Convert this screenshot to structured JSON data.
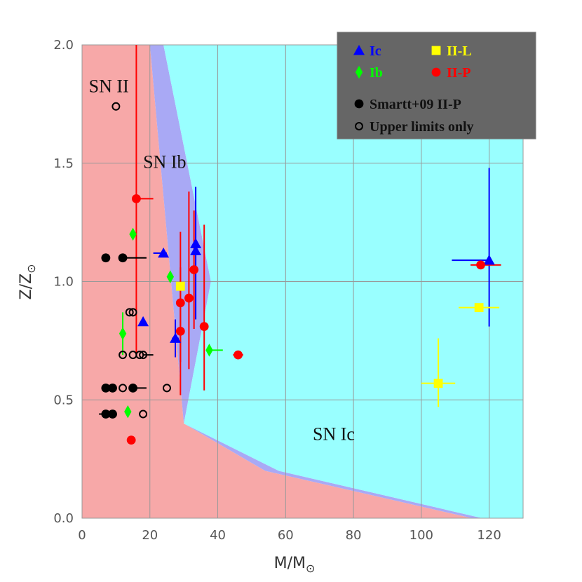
{
  "chart_data": {
    "type": "scatter",
    "xlabel": "M/M",
    "xlabel_symbol": "⊙",
    "ylabel": "Z/Z",
    "ylabel_symbol": "⊙",
    "xlim": [
      0,
      130
    ],
    "ylim": [
      0.0,
      2.0
    ],
    "x_ticks": [
      "0",
      "20",
      "40",
      "60",
      "80",
      "100",
      "120"
    ],
    "y_ticks": [
      "0.0",
      "0.5",
      "1.0",
      "1.5",
      "2.0"
    ],
    "grid": true,
    "legend_position": "top-right",
    "regions": [
      {
        "name": "SN II",
        "color": "#f7a8a8",
        "boundary": [
          [
            0,
            0
          ],
          [
            0,
            2
          ],
          [
            20,
            2
          ],
          [
            30,
            0.4
          ],
          [
            54,
            0.2
          ],
          [
            115,
            0
          ],
          [
            0,
            0
          ]
        ]
      },
      {
        "name": "SN Ib",
        "color": "#a9a9f5",
        "boundary": [
          [
            20,
            2
          ],
          [
            24,
            2
          ],
          [
            38,
            1.0
          ],
          [
            30,
            0.4
          ],
          [
            58,
            0.2
          ],
          [
            118,
            0
          ],
          [
            115,
            0
          ],
          [
            54,
            0.2
          ],
          [
            30,
            0.4
          ]
        ]
      },
      {
        "name": "SN Ic",
        "color": "#99ffff",
        "boundary": [
          [
            24,
            2
          ],
          [
            130,
            2
          ],
          [
            130,
            0
          ],
          [
            118,
            0
          ],
          [
            58,
            0.2
          ],
          [
            30,
            0.4
          ],
          [
            38,
            1.0
          ]
        ]
      }
    ],
    "region_labels": [
      {
        "text": "SN II",
        "x": 2,
        "y": 1.8
      },
      {
        "text": "SN Ib",
        "x": 18,
        "y": 1.48
      },
      {
        "text": "SN Ic",
        "x": 68,
        "y": 0.33
      }
    ],
    "legend": [
      {
        "label": "Ic",
        "marker": "triangle",
        "color": "#0000ff"
      },
      {
        "label": "II-L",
        "marker": "square",
        "color": "#ffff00"
      },
      {
        "label": "Ib",
        "marker": "diamond",
        "color": "#00ff00"
      },
      {
        "label": "II-P",
        "marker": "circle",
        "color": "#ff0000"
      },
      {
        "label": "Smartt+09 II-P",
        "marker": "circle",
        "color": "#000000"
      },
      {
        "label": "Upper limits only",
        "marker": "open-circle",
        "color": "#000000"
      }
    ],
    "series": [
      {
        "name": "Ic",
        "marker": "triangle",
        "color": "#0000ff",
        "points": [
          {
            "x": 18,
            "y": 0.83
          },
          {
            "x": 24,
            "y": 1.12,
            "xerr": [
              3,
              1
            ]
          },
          {
            "x": 27.5,
            "y": 0.76,
            "yerr": [
              0.08,
              0.08
            ],
            "xerr": [
              1,
              1
            ]
          },
          {
            "x": 33.5,
            "y": 1.16,
            "yerr": [
              0.32,
              0.24
            ]
          },
          {
            "x": 33.5,
            "y": 1.13
          },
          {
            "x": 120,
            "y": 1.09,
            "yerr": [
              0.28,
              0.39
            ],
            "xerr": [
              11,
              0
            ]
          }
        ]
      },
      {
        "name": "II-L",
        "marker": "square",
        "color": "#ffff00",
        "points": [
          {
            "x": 29,
            "y": 0.98
          },
          {
            "x": 117,
            "y": 0.89,
            "xerr": [
              6,
              6
            ]
          },
          {
            "x": 105,
            "y": 0.57,
            "xerr": [
              5,
              5
            ],
            "yerr": [
              0.1,
              0.19
            ]
          }
        ]
      },
      {
        "name": "Ib",
        "marker": "diamond",
        "color": "#00ff00",
        "points": [
          {
            "x": 15,
            "y": 1.2
          },
          {
            "x": 26,
            "y": 1.02
          },
          {
            "x": 12,
            "y": 0.78,
            "yerr": [
              0.09,
              0.09
            ]
          },
          {
            "x": 37.5,
            "y": 0.71,
            "xerr": [
              0,
              4
            ]
          },
          {
            "x": 13.5,
            "y": 0.45
          }
        ]
      },
      {
        "name": "II-P",
        "marker": "circle",
        "color": "#ff0000",
        "points": [
          {
            "x": 16,
            "y": 1.35,
            "yerr": [
              0.65,
              1.4
            ],
            "xerr": [
              0,
              5
            ]
          },
          {
            "x": 33,
            "y": 1.05,
            "yerr": [
              0.25,
              0.25
            ]
          },
          {
            "x": 31.5,
            "y": 0.93,
            "yerr": [
              0.3,
              0.45
            ]
          },
          {
            "x": 29,
            "y": 0.91,
            "yerr": [
              0.25,
              0.3
            ]
          },
          {
            "x": 29,
            "y": 0.79,
            "yerr": [
              0.27,
              0.27
            ]
          },
          {
            "x": 36,
            "y": 0.81,
            "yerr": [
              0.27,
              0.43
            ]
          },
          {
            "x": 46,
            "y": 0.69,
            "xerr": [
              1.5,
              1.5
            ]
          },
          {
            "x": 14.5,
            "y": 0.33
          },
          {
            "x": 117.5,
            "y": 1.07,
            "xerr": [
              3,
              6
            ]
          }
        ]
      },
      {
        "name": "Smartt+09 II-P",
        "marker": "circle",
        "color": "#000000",
        "points": [
          {
            "x": 7,
            "y": 1.1
          },
          {
            "x": 12,
            "y": 1.1,
            "xerr": [
              0,
              7
            ]
          },
          {
            "x": 7,
            "y": 0.55
          },
          {
            "x": 9,
            "y": 0.55
          },
          {
            "x": 15,
            "y": 0.55,
            "xerr": [
              0,
              4
            ]
          },
          {
            "x": 7,
            "y": 0.44
          },
          {
            "x": 9,
            "y": 0.44,
            "xerr": [
              4,
              0
            ]
          }
        ]
      },
      {
        "name": "Upper limits only",
        "marker": "open-circle",
        "color": "#000000",
        "points": [
          {
            "x": 10,
            "y": 1.74
          },
          {
            "x": 14,
            "y": 0.87
          },
          {
            "x": 15,
            "y": 0.87
          },
          {
            "x": 12,
            "y": 0.69
          },
          {
            "x": 15,
            "y": 0.69
          },
          {
            "x": 17,
            "y": 0.69
          },
          {
            "x": 18,
            "y": 0.69,
            "xerr": [
              0,
              3
            ]
          },
          {
            "x": 12,
            "y": 0.55
          },
          {
            "x": 25,
            "y": 0.55
          },
          {
            "x": 18,
            "y": 0.44
          }
        ]
      }
    ]
  }
}
